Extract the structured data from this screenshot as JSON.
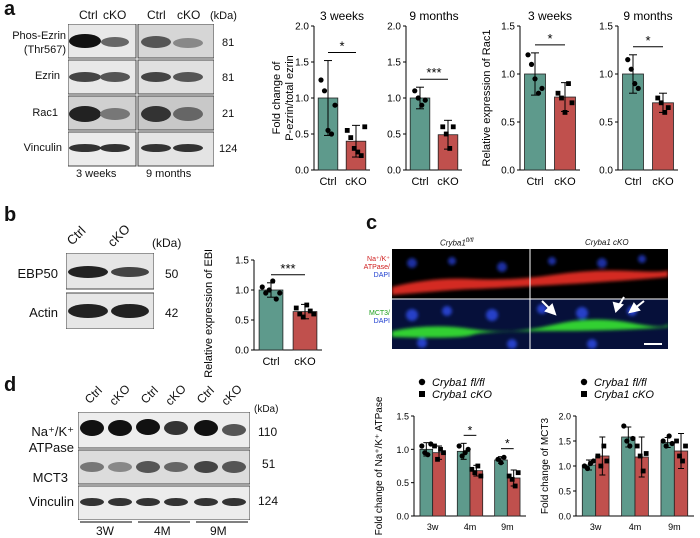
{
  "panel_letters": {
    "a": "a",
    "b": "b",
    "c": "c",
    "d": "d"
  },
  "panel_a_blot": {
    "lanes": [
      "Ctrl",
      "cKO",
      "Ctrl",
      "cKO"
    ],
    "kda_unit": "(kDa)",
    "rows": [
      {
        "label": "Phos-Ezrin",
        "label2": "(Thr567)",
        "kda": "81"
      },
      {
        "label": "Ezrin",
        "kda": "81"
      },
      {
        "label": "Rac1",
        "kda": "21"
      },
      {
        "label": "Vinculin",
        "kda": "124"
      }
    ],
    "timepoints": [
      "3 weeks",
      "9 months"
    ]
  },
  "panel_b_blot": {
    "lanes": [
      "Ctrl",
      "cKO"
    ],
    "kda_unit": "(kDa)",
    "rows": [
      {
        "label": "EBP50",
        "kda": "50"
      },
      {
        "label": "Actin",
        "kda": "42"
      }
    ]
  },
  "panel_c_micro": {
    "col_titles": [
      "Cryba1",
      "Cryba1 cKO"
    ],
    "col_title_sup": "fl/fl",
    "row1_label": [
      "Na⁺/K⁺",
      "ATPase/",
      "DAPI"
    ],
    "row2_label": [
      "MCT3/",
      "DAPI"
    ]
  },
  "panel_d_blot": {
    "lanes": [
      "Ctrl",
      "cKO",
      "Ctrl",
      "cKO",
      "Ctrl",
      "cKO"
    ],
    "kda_unit": "(kDa)",
    "rows": [
      {
        "label": "Na⁺/K⁺",
        "label2": "ATPase",
        "kda": "110"
      },
      {
        "label": "MCT3",
        "kda": "51"
      },
      {
        "label": "Vinculin",
        "kda": "124"
      }
    ],
    "timepoints": [
      "3W",
      "4M",
      "9M"
    ]
  },
  "colors": {
    "ctrl": "#5e9a8c",
    "cko": "#c0504d"
  },
  "chart_data": [
    {
      "id": "a1",
      "type": "bar",
      "title": "3 weeks",
      "ylabel": "Fold change of P-ezrin/total ezrin",
      "categories": [
        "Ctrl",
        "cKO"
      ],
      "values": [
        1.0,
        0.4
      ],
      "errors": [
        0.52,
        0.22
      ],
      "points": [
        [
          1.25,
          1.1,
          0.55,
          0.5,
          0.9
        ],
        [
          0.55,
          0.45,
          0.3,
          0.25,
          0.2,
          0.6
        ]
      ],
      "ylim": [
        0,
        2.0
      ],
      "yticks": [
        "0.0",
        "0.5",
        "1.0",
        "1.5",
        "2.0"
      ],
      "sig": "*"
    },
    {
      "id": "a2",
      "type": "bar",
      "title": "9 months",
      "ylabel": "",
      "categories": [
        "Ctrl",
        "cKO"
      ],
      "values": [
        1.0,
        0.49
      ],
      "errors": [
        0.15,
        0.2
      ],
      "points": [
        [
          1.1,
          1.0,
          0.9,
          0.97
        ],
        [
          0.6,
          0.5,
          0.3,
          0.6
        ]
      ],
      "ylim": [
        0,
        2.0
      ],
      "yticks": [
        "0.0",
        "0.5",
        "1.0",
        "1.5",
        "2.0"
      ],
      "sig": "***"
    },
    {
      "id": "a3",
      "type": "bar",
      "title": "3 weeks",
      "ylabel": "Relative expression of Rac1",
      "categories": [
        "Ctrl",
        "cKO"
      ],
      "values": [
        1.0,
        0.76
      ],
      "errors": [
        0.22,
        0.15
      ],
      "points": [
        [
          1.2,
          1.1,
          0.95,
          0.8,
          0.85
        ],
        [
          0.8,
          0.75,
          0.6,
          0.9,
          0.7
        ]
      ],
      "ylim": [
        0,
        1.5
      ],
      "yticks": [
        "0.0",
        "0.5",
        "1.0",
        "1.5"
      ],
      "sig": "*"
    },
    {
      "id": "a4",
      "type": "bar",
      "title": "9 months",
      "ylabel": "",
      "categories": [
        "Ctrl",
        "cKO"
      ],
      "values": [
        1.0,
        0.7
      ],
      "errors": [
        0.2,
        0.1
      ],
      "points": [
        [
          1.15,
          1.05,
          0.9,
          0.85
        ],
        [
          0.75,
          0.7,
          0.6,
          0.65
        ]
      ],
      "ylim": [
        0,
        1.5
      ],
      "yticks": [
        "0.0",
        "0.5",
        "1.0",
        "1.5"
      ],
      "sig": "*"
    },
    {
      "id": "b1",
      "type": "bar",
      "title": "",
      "ylabel": "Relative expression of EBP50",
      "categories": [
        "Ctrl",
        "cKO"
      ],
      "values": [
        1.0,
        0.64
      ],
      "errors": [
        0.12,
        0.12
      ],
      "points": [
        [
          1.05,
          0.95,
          1.0,
          1.15,
          0.85,
          0.95
        ],
        [
          0.7,
          0.6,
          0.55,
          0.75,
          0.65,
          0.6
        ]
      ],
      "ylim": [
        0,
        1.5
      ],
      "yticks": [
        "0.0",
        "0.5",
        "1.0",
        "1.5"
      ],
      "sig": "***"
    },
    {
      "id": "d1",
      "type": "bar",
      "title": "",
      "ylabel": "Fold change of Na⁺/K⁺ ATPase",
      "categories": [
        "3w",
        "4m",
        "9m"
      ],
      "legend": [
        "Cryba1 fl/fl",
        "Cryba1 cKO"
      ],
      "series": [
        {
          "name": "Cryba1 fl/fl",
          "values": [
            1.0,
            0.97,
            0.84
          ],
          "errors": [
            0.1,
            0.12,
            0.05
          ]
        },
        {
          "name": "Cryba1 cKO",
          "values": [
            0.95,
            0.68,
            0.57
          ],
          "errors": [
            0.1,
            0.08,
            0.12
          ]
        }
      ],
      "points": [
        [
          [
            1.05,
            0.95,
            0.92,
            1.08
          ],
          [
            1.05,
            0.85,
            1.0,
            0.95
          ]
        ],
        [
          [
            1.05,
            0.9,
            0.95,
            1.0
          ],
          [
            0.7,
            0.65,
            0.75,
            0.6
          ]
        ],
        [
          [
            0.85,
            0.8,
            0.88
          ],
          [
            0.6,
            0.55,
            0.45,
            0.65
          ]
        ]
      ],
      "ylim": [
        0,
        1.5
      ],
      "yticks": [
        "0.0",
        "0.5",
        "1.0",
        "1.5"
      ],
      "sig": [
        "",
        "*",
        "*"
      ]
    },
    {
      "id": "d2",
      "type": "bar",
      "title": "",
      "ylabel": "Fold change of MCT3",
      "categories": [
        "3w",
        "4m",
        "9m"
      ],
      "legend": [
        "Cryba1 fl/fl",
        "Cryba1 cKO"
      ],
      "series": [
        {
          "name": "Cryba1 fl/fl",
          "values": [
            1.02,
            1.58,
            1.47
          ],
          "errors": [
            0.1,
            0.2,
            0.1
          ]
        },
        {
          "name": "Cryba1 cKO",
          "values": [
            1.2,
            1.18,
            1.3
          ],
          "errors": [
            0.38,
            0.4,
            0.35
          ]
        }
      ],
      "points": [
        [
          [
            1.0,
            0.95,
            1.05,
            1.1
          ],
          [
            1.2,
            1.0,
            1.4,
            1.1
          ]
        ],
        [
          [
            1.8,
            1.5,
            1.4,
            1.55
          ],
          [
            1.4,
            1.2,
            0.9,
            1.25
          ]
        ],
        [
          [
            1.5,
            1.4,
            1.6,
            1.45
          ],
          [
            1.5,
            1.2,
            1.1,
            1.4
          ]
        ]
      ],
      "ylim": [
        0,
        2.0
      ],
      "yticks": [
        "0.0",
        "0.5",
        "1.0",
        "1.5",
        "2.0"
      ],
      "sig": [
        "",
        "",
        ""
      ]
    }
  ]
}
